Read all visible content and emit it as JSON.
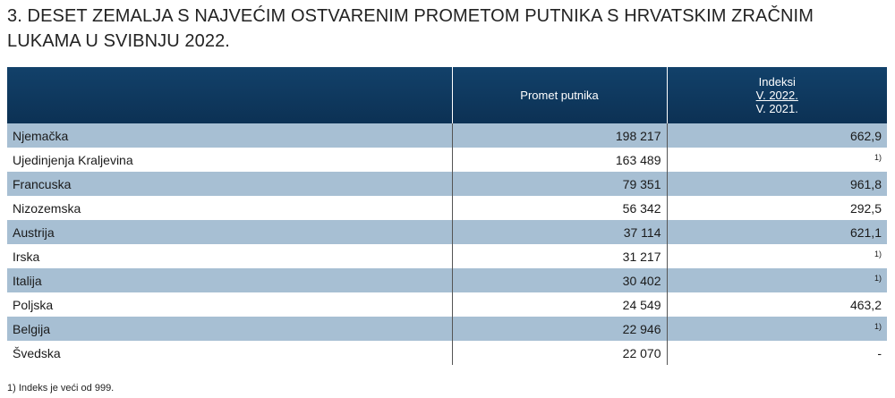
{
  "title": "3. DESET ZEMALJA S NAJVEĆIM OSTVARENIM PROMETOM PUTNIKA S HRVATSKIM ZRAČNIM LUKAMA U SVIBNJU 2022.",
  "table": {
    "headers": {
      "country": "",
      "passengers": "Promet putnika",
      "index_label": "Indeksi",
      "index_numerator": "V. 2022.",
      "index_denominator": "V. 2021."
    },
    "rows": [
      {
        "country": "Njemačka",
        "passengers": "198 217",
        "index": "662,9",
        "footnote": ""
      },
      {
        "country": "Ujedinjenja Kraljevina",
        "passengers": "163 489",
        "index": "",
        "footnote": "1)"
      },
      {
        "country": "Francuska",
        "passengers": "79 351",
        "index": "961,8",
        "footnote": ""
      },
      {
        "country": "Nizozemska",
        "passengers": "56 342",
        "index": "292,5",
        "footnote": ""
      },
      {
        "country": "Austrija",
        "passengers": "37 114",
        "index": "621,1",
        "footnote": ""
      },
      {
        "country": "Irska",
        "passengers": "31 217",
        "index": "",
        "footnote": "1)"
      },
      {
        "country": "Italija",
        "passengers": "30 402",
        "index": "",
        "footnote": "1)"
      },
      {
        "country": "Poljska",
        "passengers": "24 549",
        "index": "463,2",
        "footnote": ""
      },
      {
        "country": "Belgija",
        "passengers": "22 946",
        "index": "",
        "footnote": "1)"
      },
      {
        "country": "Švedska",
        "passengers": "22 070",
        "index": "-",
        "footnote": ""
      }
    ]
  },
  "footnote": "1) Indeks je veći od 999.",
  "colors": {
    "header_bg": "#0f3a60",
    "row_shade": "#a7bfd3",
    "row_plain": "#ffffff"
  }
}
